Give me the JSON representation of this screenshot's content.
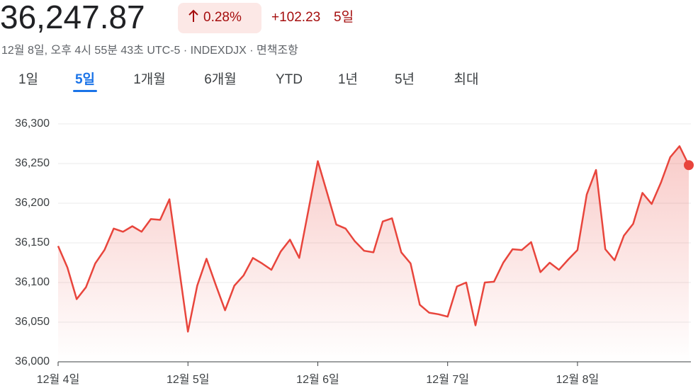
{
  "header": {
    "price": "36,247.87",
    "change_percent": "0.28%",
    "change": "+102.23",
    "period": "5일",
    "meta": "12월 8일, 오후 4시 55분 43초 UTC-5 · INDEXDJX · 면책조항"
  },
  "tabs": [
    "1일",
    "5일",
    "1개월",
    "6개월",
    "YTD",
    "1년",
    "5년",
    "최대"
  ],
  "active_tab": 1,
  "chart_data": {
    "type": "line",
    "color": "#e8453c",
    "categories": [
      "12월 4일",
      null,
      null,
      null,
      null,
      null,
      null,
      null,
      null,
      null,
      null,
      null,
      null,
      null,
      "12월 5일",
      null,
      null,
      null,
      null,
      null,
      null,
      null,
      null,
      null,
      null,
      null,
      null,
      null,
      "12월 6일",
      null,
      null,
      null,
      null,
      null,
      null,
      null,
      null,
      null,
      null,
      null,
      null,
      null,
      "12월 7일",
      null,
      null,
      null,
      null,
      null,
      null,
      null,
      null,
      null,
      null,
      null,
      null,
      null,
      "12월 8일",
      null,
      null,
      null,
      null,
      null,
      null,
      null,
      null,
      null,
      null,
      null,
      null
    ],
    "values": [
      36146,
      36119,
      36079,
      36094,
      36124,
      36141,
      36168,
      36164,
      36171,
      36164,
      36180,
      36179,
      36205,
      36122,
      36038,
      36096,
      36130,
      36097,
      36065,
      36096,
      36109,
      36131,
      36124,
      36116,
      36139,
      36154,
      36131,
      36192,
      36253,
      36213,
      36173,
      36168,
      36152,
      36140,
      36138,
      36177,
      36181,
      36138,
      36124,
      36072,
      36062,
      36060,
      36057,
      36095,
      36100,
      36046,
      36100,
      36101,
      36125,
      36142,
      36141,
      36151,
      36113,
      36125,
      36116,
      36129,
      36141,
      36211,
      36242,
      36142,
      36128,
      36159,
      36174,
      36213,
      36199,
      36226,
      36258,
      36272,
      36248
    ],
    "ylim": [
      36000,
      36300
    ],
    "yticks": [
      {
        "value": 36000,
        "label": "36,000"
      },
      {
        "value": 36050,
        "label": "36,050"
      },
      {
        "value": 36100,
        "label": "36,100"
      },
      {
        "value": 36150,
        "label": "36,150"
      },
      {
        "value": 36200,
        "label": "36,200"
      },
      {
        "value": 36250,
        "label": "36,250"
      },
      {
        "value": 36300,
        "label": "36,300"
      }
    ],
    "grid": true
  }
}
